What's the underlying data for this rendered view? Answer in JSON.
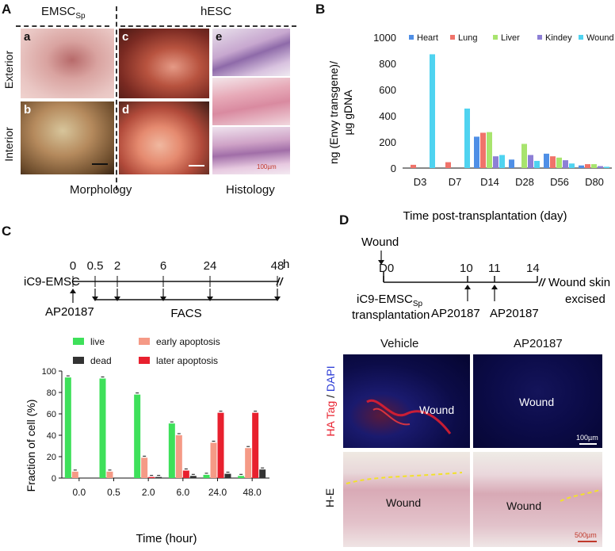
{
  "panelA": {
    "label": "A",
    "group_emsc": "EMSC",
    "group_emsc_sub": "Sp",
    "group_hesc": "hESC",
    "row_exterior": "Exterior",
    "row_interior": "Interior",
    "sub_a": "a",
    "sub_b": "b",
    "sub_c": "c",
    "sub_d": "d",
    "sub_e": "e",
    "caption_morphology": "Morphology",
    "caption_histology": "Histology",
    "scale_label": "100µm"
  },
  "panelB": {
    "label": "B"
  },
  "panelC": {
    "label": "C",
    "timeline": {
      "line_label": "iC9-EMSC",
      "times": [
        "0",
        "0.5",
        "2",
        "6",
        "24",
        "48"
      ],
      "unit": "h",
      "drug": "AP20187",
      "assay": "FACS"
    }
  },
  "panelD": {
    "label": "D",
    "timeline": {
      "wound": "Wound",
      "days": [
        "D0",
        "10",
        "11",
        "14"
      ],
      "transplant_line1": "iC9-EMSC",
      "transplant_sub": "Sp",
      "transplant_line2": "transplantation",
      "drug1": "AP20187",
      "drug2": "AP20187",
      "excised_line1": "Wound skin",
      "excised_line2": "excised"
    },
    "col_vehicle": "Vehicle",
    "col_ap": "AP20187",
    "row_if_ha": "HA Tag",
    "row_if_sep": " / ",
    "row_if_dapi": "DAPI",
    "row_he": "H-E",
    "wound_label": "Wound",
    "scale_if": "100µm",
    "scale_he": "500µm"
  },
  "colors": {
    "heart": "#4f8fe6",
    "lung": "#f0736a",
    "liver": "#a8e46e",
    "kidney": "#8d7fd6",
    "wound": "#4fd3f0",
    "live": "#3ee05a",
    "dead": "#333333",
    "early": "#f59a86",
    "later": "#e8202e"
  },
  "chart_data": [
    {
      "type": "bar",
      "ylabel_line1": "ng (Envy transgene)/",
      "ylabel_line2": "µg gDNA",
      "xlabel": "Time post-transplantation (day)",
      "ylim": [
        0,
        1000
      ],
      "yticks": [
        "0",
        "200",
        "400",
        "600",
        "800",
        "1000"
      ],
      "categories": [
        "D3",
        "D7",
        "D14",
        "D28",
        "D56",
        "D80"
      ],
      "series": [
        {
          "name": "Heart",
          "values": [
            0,
            0,
            240,
            65,
            110,
            20
          ]
        },
        {
          "name": "Lung",
          "values": [
            25,
            45,
            270,
            0,
            90,
            30
          ]
        },
        {
          "name": "Liver",
          "values": [
            0,
            0,
            275,
            185,
            80,
            30
          ]
        },
        {
          "name": "Kindey",
          "values": [
            0,
            0,
            90,
            100,
            60,
            15
          ]
        },
        {
          "name": "Wound skin",
          "values": [
            870,
            455,
            100,
            55,
            35,
            10
          ]
        }
      ]
    },
    {
      "type": "bar",
      "ylabel": "Fraction of cell (%)",
      "xlabel": "Time (hour)",
      "ylim": [
        0,
        100
      ],
      "yticks": [
        "0",
        "20",
        "40",
        "60",
        "80",
        "100"
      ],
      "categories": [
        "0.0",
        "0.5",
        "2.0",
        "6.0",
        "24.0",
        "48.0"
      ],
      "series": [
        {
          "name": "live",
          "values": [
            94,
            93,
            78,
            51,
            3,
            2
          ]
        },
        {
          "name": "early apoptosis",
          "values": [
            6,
            6,
            19,
            40,
            33,
            28
          ]
        },
        {
          "name": "later apoptosis",
          "values": [
            0,
            0,
            1,
            7,
            61,
            61
          ]
        },
        {
          "name": "dead",
          "values": [
            0,
            0,
            1,
            2,
            4,
            8
          ]
        }
      ],
      "legend": [
        "live",
        "dead",
        "early apoptosis",
        "later apoptosis"
      ]
    }
  ]
}
